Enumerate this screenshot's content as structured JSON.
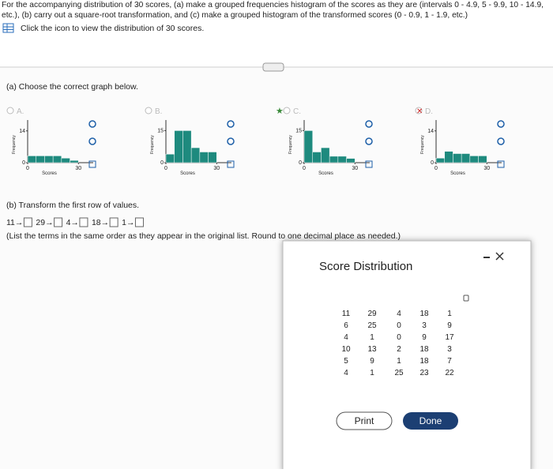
{
  "header": {
    "lines": [
      "For the accompanying distribution of 30 scores, (a) make a grouped frequencies histogram of the scores as they are (intervals 0 - 4.9, 5 - 9.9, 10 - 14.9,",
      "etc.), (b) carry out a square-root transformation, and (c) make a grouped histogram of the transformed scores (0 - 0.9, 1 - 1.9, etc.)"
    ],
    "link": "Click the icon to view the distribution of 30 scores."
  },
  "part_a": {
    "prompt": "(a) Choose the correct graph below.",
    "options": [
      {
        "letter": "A.",
        "y_label": "Frequency",
        "x_label": "Scores",
        "bins": [
          0,
          5,
          10,
          15,
          20,
          25,
          30
        ],
        "counts": [
          3,
          3,
          3,
          3,
          2,
          1
        ],
        "xlim": [
          0,
          35
        ],
        "ylim": [
          0,
          16
        ],
        "xticks": [
          0,
          30
        ],
        "yticks": [
          0,
          14
        ]
      },
      {
        "letter": "B.",
        "y_label": "Frequency",
        "x_label": "Scores",
        "bins": [
          0,
          5,
          10,
          15,
          20,
          25,
          30
        ],
        "counts": [
          4,
          15,
          15,
          7,
          5,
          5
        ],
        "xlim": [
          0,
          35
        ],
        "ylim": [
          0,
          17
        ],
        "xticks": [
          0,
          30
        ],
        "yticks": [
          0,
          15
        ]
      },
      {
        "letter": "C.",
        "y_label": "Frequency",
        "x_label": "Scores",
        "bins": [
          0,
          5,
          10,
          15,
          20,
          25,
          30
        ],
        "counts": [
          15,
          5,
          7,
          3,
          3,
          2
        ],
        "xlim": [
          0,
          35
        ],
        "ylim": [
          0,
          17
        ],
        "xticks": [
          0,
          30
        ],
        "yticks": [
          0,
          15
        ]
      },
      {
        "letter": "D.",
        "y_label": "Frequency",
        "x_label": "Scores",
        "bins": [
          0,
          5,
          10,
          15,
          20,
          25,
          30
        ],
        "counts": [
          2,
          5,
          4,
          4,
          3,
          3
        ],
        "xlim": [
          0,
          35
        ],
        "ylim": [
          0,
          16
        ],
        "xticks": [
          0,
          30
        ],
        "yticks": [
          0,
          14
        ]
      }
    ]
  },
  "part_b": {
    "prompt": "(b) Transform the first row of values.",
    "answers": [
      "11→",
      "29→",
      "4→",
      "18→",
      "1→"
    ],
    "note": "(List the terms in the same order as they appear in the original list. Round to one decimal place as needed.)"
  },
  "dialog": {
    "title": "Score Distribution",
    "table": {
      "rows": [
        [
          "11",
          "29",
          "4",
          "18",
          "1"
        ],
        [
          "6",
          "25",
          "0",
          "3",
          "9"
        ],
        [
          "4",
          "1",
          "0",
          "9",
          "17"
        ],
        [
          "10",
          "13",
          "2",
          "18",
          "3"
        ],
        [
          "5",
          "9",
          "1",
          "18",
          "7"
        ],
        [
          "4",
          "1",
          "25",
          "23",
          "22"
        ]
      ]
    },
    "buttons": [
      "Print",
      "Done"
    ]
  }
}
